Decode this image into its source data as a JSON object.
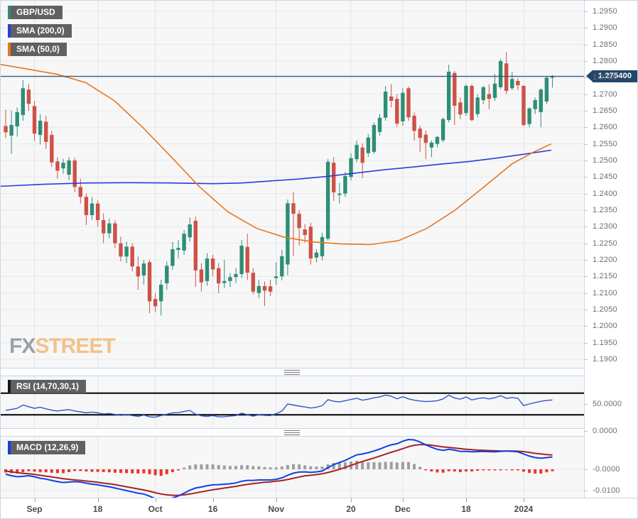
{
  "chart": {
    "symbol_label": "GBP/USD",
    "sma200_label": "SMA (200,0)",
    "sma50_label": "SMA (50,0)",
    "rsi_label": "RSI (14,70,30,1)",
    "macd_label": "MACD (12,26,9)",
    "watermark_fx": "FX",
    "watermark_street": "STREET",
    "last_price_label": "1.275400",
    "colors": {
      "candle_up": "#2e8e76",
      "candle_down": "#cd5246",
      "sma200": "#2b3cdb",
      "sma50": "#e8761f",
      "price_line": "#31556f",
      "badge_bg": "#24466b",
      "rsi_line": "#3355cc",
      "rsi_band": "#000000",
      "macd_line": "#1040e0",
      "signal_line": "#a82222",
      "hist_pos": "#9e9e9e",
      "hist_neg": "#ee3428",
      "grid": "#e7e8ec",
      "vgrid": "#e2e5ea"
    }
  },
  "chart_data": {
    "type": "candlestick",
    "title": "GBP/USD daily candlestick chart with SMA(200), SMA(50), RSI(14,70,30,1) and MACD(12,26,9)",
    "legend_position": "top-left",
    "grid": true,
    "last_price": 1.2754,
    "price_axis": {
      "min": 1.19,
      "max": 1.295,
      "tick_step": 0.005
    },
    "x_ticks": [
      {
        "index": 5,
        "label": "Sep"
      },
      {
        "index": 16,
        "label": "18"
      },
      {
        "index": 26,
        "label": "Oct"
      },
      {
        "index": 36,
        "label": "16"
      },
      {
        "index": 47,
        "label": "Nov"
      },
      {
        "index": 60,
        "label": "20"
      },
      {
        "index": 69,
        "label": "Dec"
      },
      {
        "index": 80,
        "label": "18"
      },
      {
        "index": 90,
        "label": "2024"
      }
    ],
    "candles": {
      "open": [
        1.2604,
        1.2575,
        1.2603,
        1.2637,
        1.2714,
        1.2664,
        1.2577,
        1.2617,
        1.2577,
        1.2497,
        1.2476,
        1.2457,
        1.25,
        1.242,
        1.239,
        1.2335,
        1.237,
        1.232,
        1.228,
        1.231,
        1.225,
        1.221,
        1.224,
        1.218,
        1.2153,
        1.2193,
        1.2082,
        1.2075,
        1.2129,
        1.2182,
        1.223,
        1.2228,
        1.2268,
        1.2318,
        1.2171,
        1.2136,
        1.2204,
        1.2175,
        1.213,
        1.2136,
        1.2148,
        1.2157,
        1.2239,
        1.2161,
        1.21,
        1.2121,
        1.212,
        1.2145,
        1.215,
        1.2186,
        1.2371,
        1.2339,
        1.2292,
        1.23,
        1.2207,
        1.2211,
        1.2264,
        1.2493,
        1.2396,
        1.24,
        1.245,
        1.2504,
        1.2539,
        1.2522,
        1.2526,
        1.2586,
        1.2629,
        1.2693,
        1.2686,
        1.2618,
        1.2718,
        1.2635,
        1.2596,
        1.2578,
        1.2539,
        1.255,
        1.2561,
        1.2622,
        1.2764,
        1.2675,
        1.2643,
        1.2725,
        1.264,
        1.2682,
        1.27,
        1.2689,
        1.2721,
        1.2793,
        1.2718,
        1.274,
        1.2725,
        1.261,
        1.2655,
        1.2646,
        1.2678,
        1.275
      ],
      "high": [
        1.2653,
        1.265,
        1.266,
        1.2742,
        1.2731,
        1.268,
        1.264,
        1.2635,
        1.259,
        1.251,
        1.2505,
        1.251,
        1.2508,
        1.2445,
        1.24,
        1.239,
        1.238,
        1.234,
        1.2325,
        1.232,
        1.227,
        1.2255,
        1.225,
        1.221,
        1.22,
        1.22,
        1.21,
        1.214,
        1.2195,
        1.2254,
        1.226,
        1.229,
        1.2328,
        1.233,
        1.219,
        1.222,
        1.2215,
        1.219,
        1.22,
        1.216,
        1.2175,
        1.226,
        1.2279,
        1.2175,
        1.214,
        1.2135,
        1.214,
        1.2193,
        1.223,
        1.2382,
        1.2404,
        1.235,
        1.2308,
        1.2312,
        1.2232,
        1.2282,
        1.2504,
        1.251,
        1.2432,
        1.2465,
        1.2522,
        1.256,
        1.2552,
        1.258,
        1.2615,
        1.264,
        1.2725,
        1.273,
        1.27,
        1.2718,
        1.2723,
        1.2645,
        1.2605,
        1.259,
        1.256,
        1.2575,
        1.263,
        1.2789,
        1.277,
        1.269,
        1.273,
        1.273,
        1.27,
        1.2725,
        1.273,
        1.2761,
        1.2807,
        1.2827,
        1.2768,
        1.2748,
        1.2728,
        1.266,
        1.269,
        1.2717,
        1.2752,
        1.2758
      ],
      "low": [
        1.2568,
        1.252,
        1.2572,
        1.262,
        1.265,
        1.256,
        1.2548,
        1.2535,
        1.248,
        1.2445,
        1.246,
        1.244,
        1.2405,
        1.237,
        1.2305,
        1.232,
        1.23,
        1.225,
        1.2265,
        1.2235,
        1.2195,
        1.219,
        1.2165,
        1.211,
        1.2125,
        1.2039,
        1.2042,
        1.2032,
        1.211,
        1.217,
        1.2205,
        1.2215,
        1.2255,
        1.2118,
        1.2105,
        1.2122,
        1.215,
        1.21,
        1.2115,
        1.2118,
        1.213,
        1.2145,
        1.214,
        1.2096,
        1.2085,
        1.2061,
        1.209,
        1.2125,
        1.2138,
        1.2153,
        1.2211,
        1.2243,
        1.2252,
        1.2186,
        1.2192,
        1.2198,
        1.2258,
        1.2378,
        1.237,
        1.239,
        1.244,
        1.2495,
        1.2446,
        1.251,
        1.252,
        1.2575,
        1.262,
        1.266,
        1.2601,
        1.2605,
        1.262,
        1.256,
        1.2525,
        1.2504,
        1.251,
        1.254,
        1.2555,
        1.2615,
        1.2607,
        1.2625,
        1.2635,
        1.2618,
        1.263,
        1.267,
        1.2655,
        1.268,
        1.2715,
        1.27,
        1.2712,
        1.2712,
        1.2603,
        1.26,
        1.264,
        1.26,
        1.267,
        1.272
      ],
      "close": [
        1.2585,
        1.2607,
        1.2646,
        1.2718,
        1.2671,
        1.2581,
        1.262,
        1.2556,
        1.2494,
        1.2469,
        1.2493,
        1.25,
        1.242,
        1.239,
        1.2335,
        1.237,
        1.232,
        1.228,
        1.231,
        1.225,
        1.221,
        1.224,
        1.218,
        1.215,
        1.2189,
        1.2075,
        1.206,
        1.2125,
        1.2182,
        1.2232,
        1.2236,
        1.2279,
        1.2307,
        1.2168,
        1.2132,
        1.2204,
        1.2171,
        1.2129,
        1.2136,
        1.2148,
        1.2157,
        1.2243,
        1.2161,
        1.2104,
        1.2121,
        1.2107,
        1.2104,
        1.215,
        1.2211,
        1.2371,
        1.2339,
        1.2296,
        1.2275,
        1.2204,
        1.2222,
        1.2269,
        1.2496,
        1.2404,
        1.24,
        1.2453,
        1.2507,
        1.2547,
        1.2493,
        1.2569,
        1.2607,
        1.2629,
        1.2708,
        1.268,
        1.2611,
        1.2704,
        1.263,
        1.2589,
        1.2568,
        1.2553,
        1.2554,
        1.2571,
        1.2625,
        1.2768,
        1.2665,
        1.2639,
        1.2725,
        1.2622,
        1.269,
        1.2721,
        1.2686,
        1.2732,
        1.28,
        1.271,
        1.2746,
        1.2727,
        1.2607,
        1.2657,
        1.2682,
        1.2714,
        1.275,
        1.2754
      ]
    },
    "sma50_points": [
      [
        -0.9,
        1.279
      ],
      [
        4.1,
        1.2775
      ],
      [
        9.0,
        1.276
      ],
      [
        13.9,
        1.2735
      ],
      [
        18.9,
        1.268
      ],
      [
        23.8,
        1.26
      ],
      [
        28.8,
        1.251
      ],
      [
        33.7,
        1.242
      ],
      [
        38.6,
        1.2345
      ],
      [
        43.6,
        1.2295
      ],
      [
        48.5,
        1.2268
      ],
      [
        53.5,
        1.2254
      ],
      [
        58.4,
        1.2248
      ],
      [
        63.3,
        1.2246
      ],
      [
        68.3,
        1.2258
      ],
      [
        73.2,
        1.2295
      ],
      [
        78.1,
        1.235
      ],
      [
        83.1,
        1.242
      ],
      [
        88.0,
        1.249
      ],
      [
        91.7,
        1.2525
      ],
      [
        94.8,
        1.255
      ]
    ],
    "sma200_points": [
      [
        -0.9,
        1.2422
      ],
      [
        6.5,
        1.2428
      ],
      [
        14.0,
        1.2432
      ],
      [
        21.4,
        1.2433
      ],
      [
        28.8,
        1.2432
      ],
      [
        36.2,
        1.243
      ],
      [
        41.1,
        1.2432
      ],
      [
        46.0,
        1.2438
      ],
      [
        51.0,
        1.2444
      ],
      [
        55.9,
        1.2452
      ],
      [
        60.9,
        1.2462
      ],
      [
        65.8,
        1.2472
      ],
      [
        70.7,
        1.248
      ],
      [
        75.7,
        1.2489
      ],
      [
        80.6,
        1.2497
      ],
      [
        85.6,
        1.2508
      ],
      [
        90.5,
        1.252
      ],
      [
        94.8,
        1.2531
      ]
    ],
    "rsi": {
      "levels": [
        70,
        30
      ],
      "axis_labels": [
        {
          "value": 50,
          "label": "50.0000"
        },
        {
          "value": 0,
          "label": "0.0000"
        }
      ],
      "values": [
        38,
        40,
        42,
        48,
        45,
        42,
        44,
        41,
        38.5,
        37,
        38.5,
        39.5,
        37,
        35.5,
        33.5,
        35,
        33.5,
        31.5,
        32.5,
        30.5,
        29,
        30.5,
        28.5,
        27,
        29.5,
        26,
        25.5,
        28.5,
        31,
        33.5,
        34,
        36,
        38,
        31,
        28,
        27,
        28.5,
        26,
        26.5,
        27.5,
        28.5,
        33,
        30,
        27.5,
        30,
        29,
        28.5,
        32,
        37,
        50,
        48,
        46,
        44.5,
        42.5,
        44,
        47,
        58,
        55,
        54,
        56,
        58.5,
        60.5,
        57,
        59,
        61.5,
        63,
        66.5,
        64.5,
        59.5,
        63.5,
        59.5,
        57,
        55.5,
        54.5,
        55,
        56,
        59.5,
        66.5,
        61,
        59,
        63,
        57.5,
        60,
        61.5,
        59.5,
        61.5,
        65.5,
        60.5,
        62,
        60.5,
        47,
        50,
        52.5,
        55,
        56.5,
        57.5
      ]
    },
    "macd": {
      "axis_labels": [
        {
          "value": 0,
          "label": "-0.0000"
        },
        {
          "value": -0.01,
          "label": "-0.0100"
        }
      ],
      "macd": [
        -0.0023,
        -0.003,
        -0.0035,
        -0.0033,
        -0.003,
        -0.0035,
        -0.0042,
        -0.0046,
        -0.0052,
        -0.0058,
        -0.0062,
        -0.006,
        -0.0058,
        -0.006,
        -0.0065,
        -0.007,
        -0.0073,
        -0.0078,
        -0.0082,
        -0.0088,
        -0.0094,
        -0.01,
        -0.0106,
        -0.0112,
        -0.0116,
        -0.0126,
        -0.0138,
        -0.0147,
        -0.0143,
        -0.0135,
        -0.0125,
        -0.0112,
        -0.0098,
        -0.0088,
        -0.0083,
        -0.0077,
        -0.0073,
        -0.0072,
        -0.007,
        -0.0068,
        -0.0064,
        -0.0056,
        -0.0052,
        -0.0052,
        -0.005,
        -0.005,
        -0.005,
        -0.0047,
        -0.004,
        -0.0028,
        -0.0018,
        -0.0013,
        -0.0012,
        -0.0014,
        -0.0012,
        -0.0008,
        0.0008,
        0.0022,
        0.0032,
        0.0042,
        0.0055,
        0.0068,
        0.0072,
        0.0078,
        0.0086,
        0.0095,
        0.0106,
        0.0115,
        0.012,
        0.0132,
        0.014,
        0.0138,
        0.0128,
        0.0115,
        0.0103,
        0.0094,
        0.0089,
        0.0094,
        0.009,
        0.0084,
        0.0084,
        0.0082,
        0.0083,
        0.0084,
        0.0083,
        0.0082,
        0.0084,
        0.0086,
        0.0084,
        0.0082,
        0.0072,
        0.0062,
        0.0055,
        0.0052,
        0.0055,
        0.0058
      ],
      "signal": [
        -0.0008,
        -0.0012,
        -0.0016,
        -0.0019,
        -0.0021,
        -0.0024,
        -0.0028,
        -0.0032,
        -0.0036,
        -0.004,
        -0.0044,
        -0.0047,
        -0.005,
        -0.0052,
        -0.0055,
        -0.0058,
        -0.0061,
        -0.0065,
        -0.0068,
        -0.0072,
        -0.0077,
        -0.0082,
        -0.0087,
        -0.0092,
        -0.0097,
        -0.0103,
        -0.011,
        -0.0116,
        -0.012,
        -0.0122,
        -0.0122,
        -0.012,
        -0.0116,
        -0.0111,
        -0.0106,
        -0.0101,
        -0.0096,
        -0.0092,
        -0.0088,
        -0.0084,
        -0.008,
        -0.0075,
        -0.0071,
        -0.0067,
        -0.0064,
        -0.0061,
        -0.0059,
        -0.0056,
        -0.0053,
        -0.0048,
        -0.0042,
        -0.0036,
        -0.0031,
        -0.0028,
        -0.0025,
        -0.0021,
        -0.0015,
        -0.0008,
        0.0,
        0.0009,
        0.0018,
        0.0028,
        0.0037,
        0.0045,
        0.0053,
        0.0062,
        0.0071,
        0.008,
        0.0088,
        0.0097,
        0.0106,
        0.0113,
        0.0116,
        0.0116,
        0.0113,
        0.0109,
        0.0105,
        0.0103,
        0.01,
        0.0097,
        0.0094,
        0.0092,
        0.009,
        0.0089,
        0.0088,
        0.0087,
        0.0086,
        0.0086,
        0.0086,
        0.0085,
        0.0083,
        0.0079,
        0.0075,
        0.0072,
        0.0069,
        0.0067
      ]
    }
  }
}
